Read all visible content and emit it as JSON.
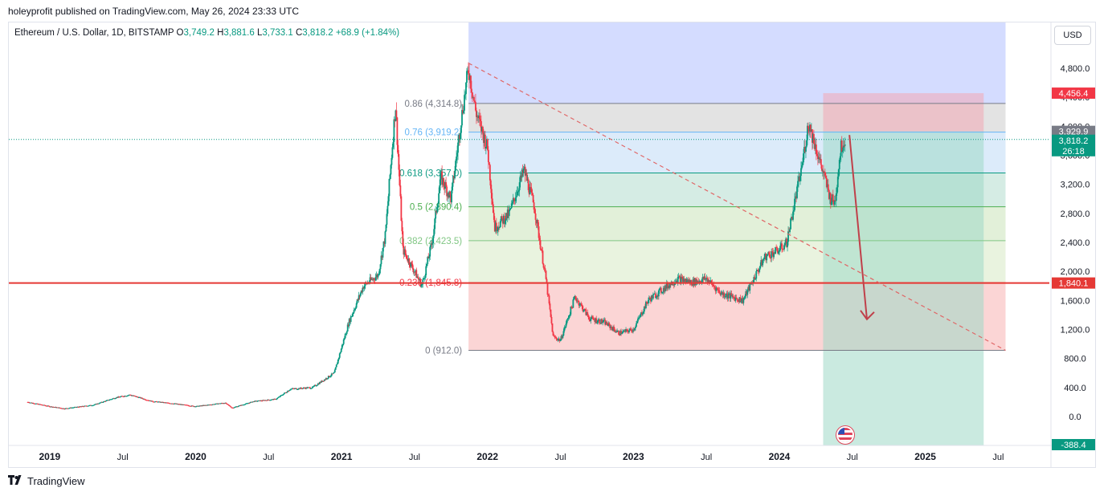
{
  "header": {
    "published_text": "holeyprofit published on TradingView.com, May 26, 2024 23:33 UTC"
  },
  "legend": {
    "symbol": "Ethereum / U.S. Dollar, 1D, BITSTAMP",
    "open_label": "O",
    "open": "3,749.2",
    "high_label": "H",
    "high": "3,881.6",
    "low_label": "L",
    "low": "3,733.1",
    "close_label": "C",
    "close": "3,818.2",
    "change": "+68.9 (+1.84%)"
  },
  "currency_button": "USD",
  "footer": {
    "brand": "TradingView"
  },
  "colors": {
    "up": "#089981",
    "down": "#f23645",
    "support_line": "#e53935",
    "fib_zone_blue": "#c7d4ff",
    "stop_zone": "#f5c6cb",
    "target_zone": "#b8e3d8"
  },
  "chart_data": {
    "type": "candlestick",
    "symbol": "ETH/USD",
    "timeframe": "1D",
    "ylim": [
      -200,
      5200
    ],
    "y_ticks": [
      "4,800.0",
      "4,400.0",
      "4,000.0",
      "3,600.0",
      "3,200.0",
      "2,800.0",
      "2,400.0",
      "2,000.0",
      "1,600.0",
      "1,200.0",
      "800.0",
      "400.0",
      "0.0"
    ],
    "x_ticks": [
      "2019",
      "Jul",
      "2020",
      "Jul",
      "2021",
      "Jul",
      "2022",
      "Jul",
      "2023",
      "Jul",
      "2024",
      "Jul",
      "2025",
      "Jul"
    ],
    "price_path": [
      [
        2018.85,
        200
      ],
      [
        2019.0,
        140
      ],
      [
        2019.1,
        110
      ],
      [
        2019.3,
        160
      ],
      [
        2019.45,
        260
      ],
      [
        2019.55,
        300
      ],
      [
        2019.7,
        210
      ],
      [
        2019.85,
        180
      ],
      [
        2020.0,
        140
      ],
      [
        2020.2,
        190
      ],
      [
        2020.25,
        120
      ],
      [
        2020.4,
        210
      ],
      [
        2020.55,
        240
      ],
      [
        2020.65,
        380
      ],
      [
        2020.8,
        400
      ],
      [
        2020.95,
        600
      ],
      [
        2021.05,
        1300
      ],
      [
        2021.15,
        1800
      ],
      [
        2021.25,
        1950
      ],
      [
        2021.3,
        2500
      ],
      [
        2021.37,
        4300
      ],
      [
        2021.42,
        2300
      ],
      [
        2021.5,
        2000
      ],
      [
        2021.55,
        1800
      ],
      [
        2021.62,
        2400
      ],
      [
        2021.68,
        3300
      ],
      [
        2021.75,
        3000
      ],
      [
        2021.82,
        4100
      ],
      [
        2021.87,
        4800
      ],
      [
        2021.92,
        4200
      ],
      [
        2022.0,
        3700
      ],
      [
        2022.05,
        2600
      ],
      [
        2022.15,
        2800
      ],
      [
        2022.25,
        3400
      ],
      [
        2022.32,
        2900
      ],
      [
        2022.4,
        1900
      ],
      [
        2022.45,
        1100
      ],
      [
        2022.5,
        1050
      ],
      [
        2022.6,
        1650
      ],
      [
        2022.7,
        1350
      ],
      [
        2022.8,
        1300
      ],
      [
        2022.9,
        1150
      ],
      [
        2023.0,
        1200
      ],
      [
        2023.1,
        1600
      ],
      [
        2023.2,
        1750
      ],
      [
        2023.3,
        1900
      ],
      [
        2023.4,
        1850
      ],
      [
        2023.5,
        1900
      ],
      [
        2023.6,
        1700
      ],
      [
        2023.75,
        1600
      ],
      [
        2023.8,
        1800
      ],
      [
        2023.9,
        2200
      ],
      [
        2024.0,
        2300
      ],
      [
        2024.05,
        2400
      ],
      [
        2024.15,
        3400
      ],
      [
        2024.2,
        4050
      ],
      [
        2024.28,
        3500
      ],
      [
        2024.35,
        3000
      ],
      [
        2024.38,
        2950
      ],
      [
        2024.42,
        3700
      ],
      [
        2024.45,
        3818.2
      ]
    ],
    "fib_retracement": {
      "levels": [
        {
          "ratio": "0.86",
          "price": 4314.8,
          "label": "0.86 (4,314.8)"
        },
        {
          "ratio": "0.76",
          "price": 3919.2,
          "label": "0.76 (3,919.2)"
        },
        {
          "ratio": "0.618",
          "price": 3357.0,
          "label": "0.618 (3,357.0)"
        },
        {
          "ratio": "0.5",
          "price": 2890.4,
          "label": "0.5 (2,890.4)"
        },
        {
          "ratio": "0.382",
          "price": 2423.5,
          "label": "0.382 (2,423.5)"
        },
        {
          "ratio": "0.236",
          "price": 1845.8,
          "label": "0.236 (1,845.8)"
        },
        {
          "ratio": "0",
          "price": 912.0,
          "label": "0 (912.0)"
        }
      ],
      "start_date": 2021.87,
      "end_date": 2025.55
    },
    "horizontal_support": 1840.1,
    "short_position": {
      "entry": 3929.9,
      "stop": 4456.4,
      "target": -388.4,
      "start": 2024.3,
      "end": 2025.4
    },
    "trendline": {
      "from": [
        2021.87,
        4870
      ],
      "to": [
        2025.55,
        912
      ]
    },
    "projected_arrow": {
      "from": [
        2024.48,
        3880
      ],
      "to": [
        2024.6,
        1340
      ]
    },
    "price_labels": [
      {
        "text": "4,456.4",
        "price": 4456.4,
        "color": "#f23645"
      },
      {
        "text": "3,929.9",
        "price": 3929.9,
        "color": "#787b86"
      },
      {
        "text": "3,818.2",
        "price": 3818.2,
        "color": "#089981"
      },
      {
        "text": "26:18",
        "price": 3640,
        "color": "#089981"
      },
      {
        "text": "1,840.1",
        "price": 1840.1,
        "color": "#e53935"
      },
      {
        "text": "-388.4",
        "price": -388.4,
        "color": "#089981"
      }
    ]
  }
}
